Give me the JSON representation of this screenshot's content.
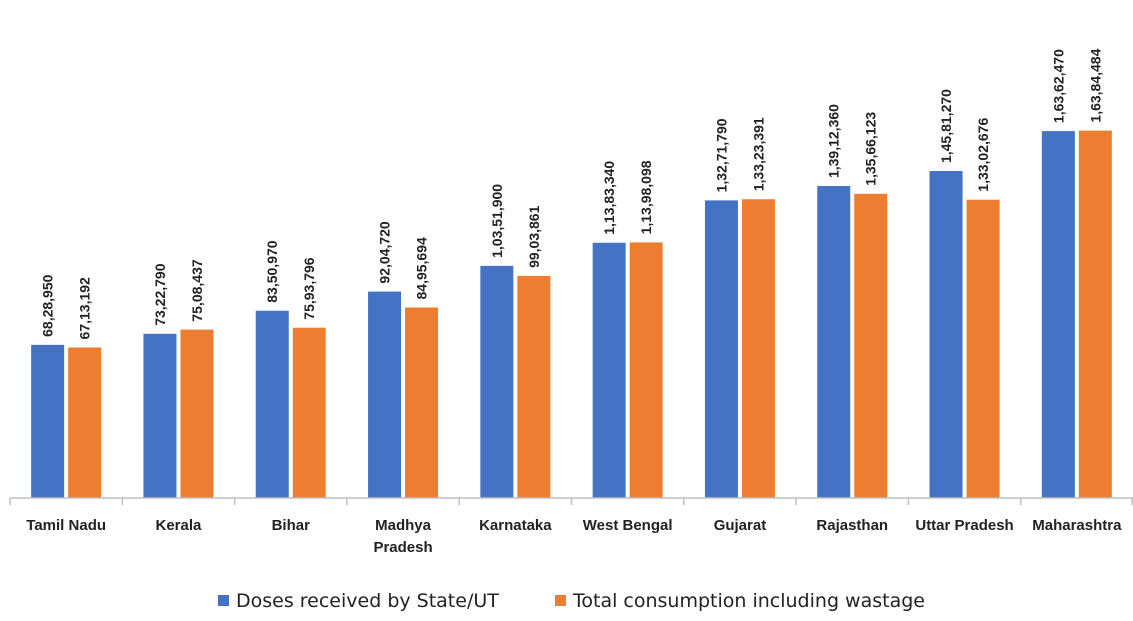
{
  "chart_data": {
    "type": "bar",
    "categories": [
      "Tamil Nadu",
      "Kerala",
      "Bihar",
      "Madhya Pradesh",
      "Karnataka",
      "West Bengal",
      "Gujarat",
      "Rajasthan",
      "Uttar Pradesh",
      "Maharashtra"
    ],
    "series": [
      {
        "name": "Doses received by State/UT",
        "color": "#4472C4",
        "values": [
          6828950,
          7322790,
          8350970,
          9204720,
          10351900,
          11383340,
          13271790,
          13912360,
          14581270,
          16362470
        ],
        "labels": [
          "68,28,950",
          "73,22,790",
          "83,50,970",
          "92,04,720",
          "1,03,51,900",
          "1,13,83,340",
          "1,32,71,790",
          "1,39,12,360",
          "1,45,81,270",
          "1,63,62,470"
        ]
      },
      {
        "name": "Total consumption including wastage",
        "color": "#ED7D31",
        "values": [
          6713192,
          7508437,
          7593796,
          8495694,
          9903861,
          11398098,
          13323391,
          13566123,
          13302676,
          16384484
        ],
        "labels": [
          "67,13,192",
          "75,08,437",
          "75,93,796",
          "84,95,694",
          "99,03,861",
          "1,13,98,098",
          "1,33,23,391",
          "1,35,66,123",
          "1,33,02,676",
          "1,63,84,484"
        ]
      }
    ],
    "ylim": [
      0,
      16500000
    ],
    "grid": false,
    "legend": "bottom"
  }
}
